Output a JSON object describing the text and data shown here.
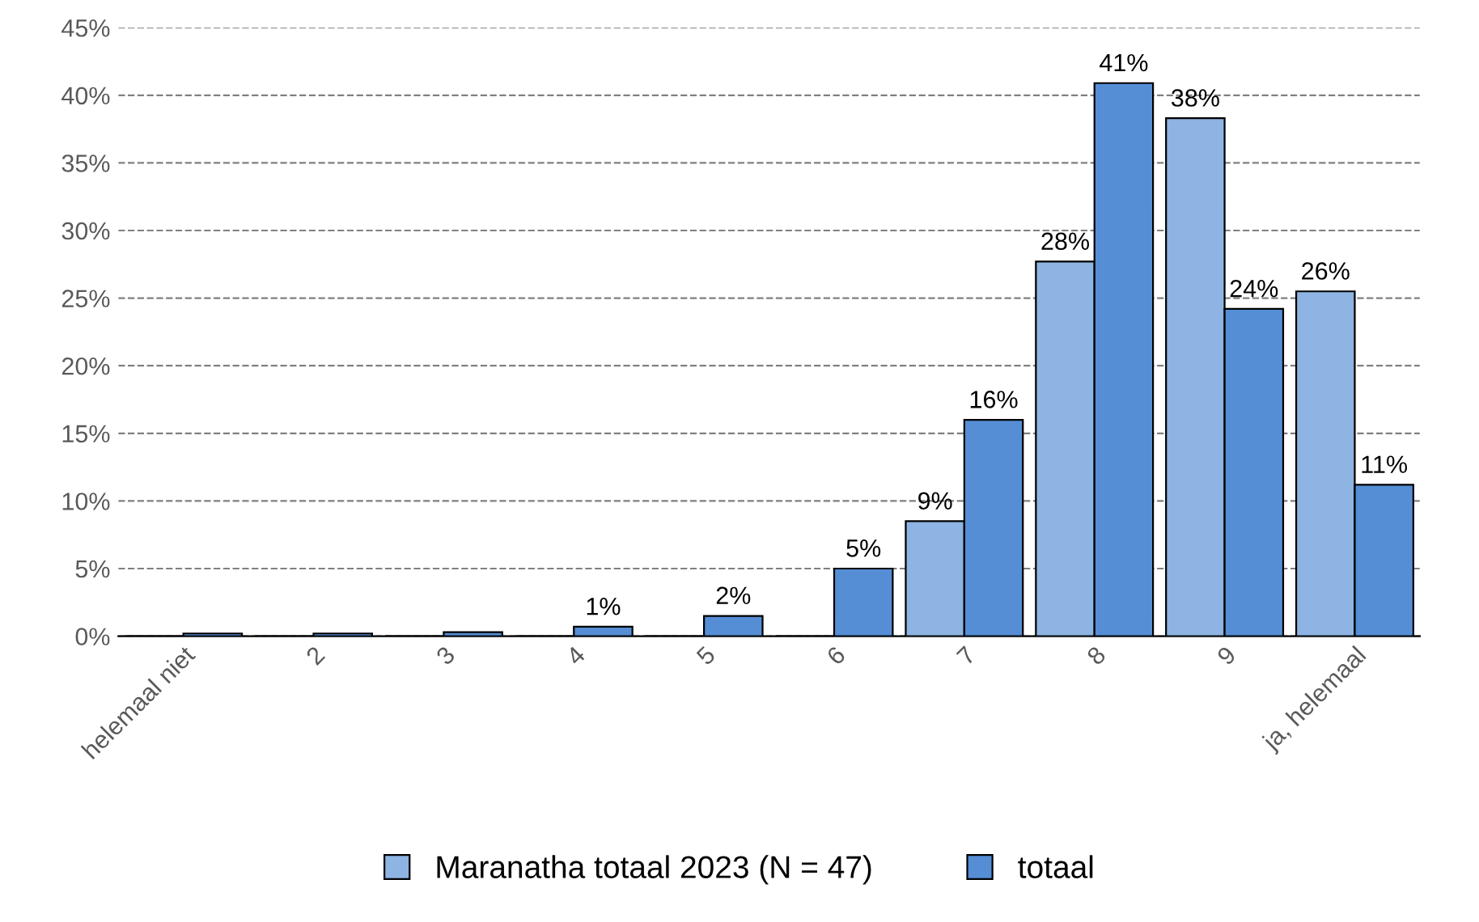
{
  "chart_data": {
    "type": "bar",
    "categories": [
      "helemaal niet",
      "2",
      "3",
      "4",
      "5",
      "6",
      "7",
      "8",
      "9",
      "ja, helemaal"
    ],
    "series": [
      {
        "name": "Maranatha totaal 2023 (N = 47)",
        "color": "#8eb4e3",
        "values": [
          0,
          0,
          0,
          0,
          0,
          0,
          8.5,
          27.7,
          38.3,
          25.5
        ],
        "value_labels": [
          null,
          null,
          null,
          null,
          null,
          null,
          "9%",
          "28%",
          "38%",
          "26%"
        ]
      },
      {
        "name": "totaal",
        "color": "#558ed5",
        "values": [
          0.2,
          0.2,
          0.3,
          0.7,
          1.5,
          5.0,
          16.0,
          40.9,
          24.2,
          11.2
        ],
        "value_labels": [
          null,
          null,
          null,
          "1%",
          "2%",
          "5%",
          "16%",
          "41%",
          "24%",
          "11%"
        ]
      }
    ],
    "ylim": [
      0,
      45
    ],
    "yticks": [
      {
        "value": 0,
        "label": "0%"
      },
      {
        "value": 5,
        "label": "5%"
      },
      {
        "value": 10,
        "label": "10%"
      },
      {
        "value": 15,
        "label": "15%"
      },
      {
        "value": 20,
        "label": "20%"
      },
      {
        "value": 25,
        "label": "25%"
      },
      {
        "value": 30,
        "label": "30%"
      },
      {
        "value": 35,
        "label": "35%"
      },
      {
        "value": 40,
        "label": "40%"
      },
      {
        "value": 45,
        "label": "45%"
      }
    ],
    "grid": "y",
    "legend": "bottom"
  }
}
